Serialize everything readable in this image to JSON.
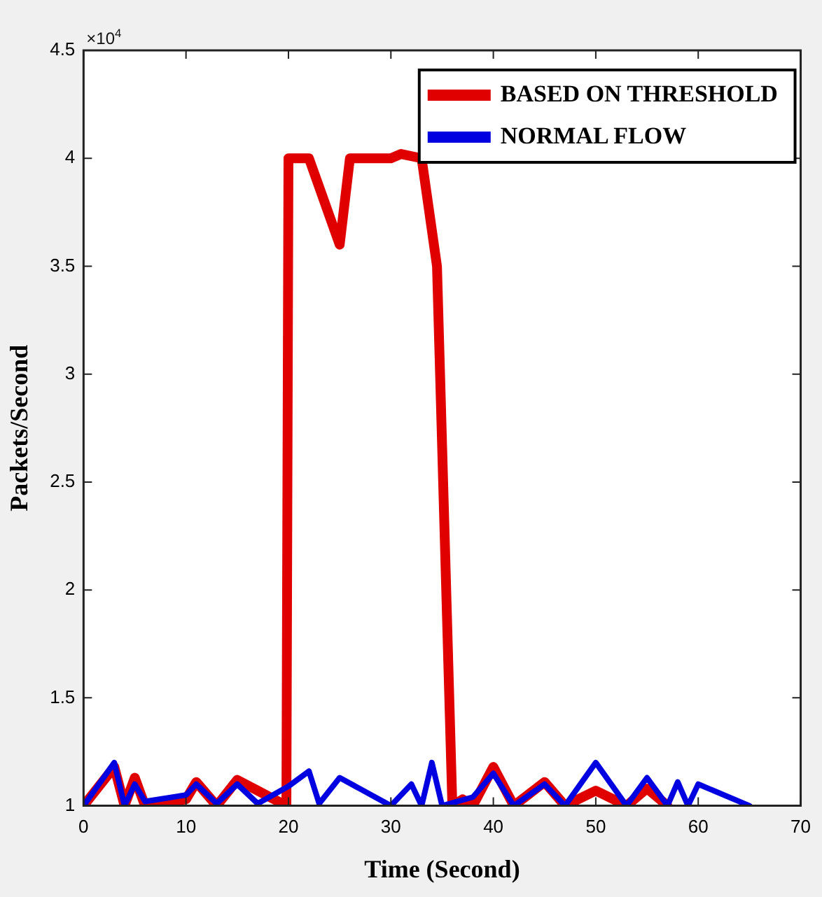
{
  "chart_data": {
    "type": "line",
    "xlabel": "Time (Second)",
    "ylabel": "Packets/Second",
    "annotations": [
      "×10$^{4}$"
    ],
    "xlim": [
      0,
      70
    ],
    "xticks": [
      0,
      10,
      20,
      30,
      40,
      50,
      60,
      70
    ],
    "ylim": [
      1,
      4.5
    ],
    "yticks": [
      1,
      1.5,
      2,
      2.5,
      3,
      3.5,
      4,
      4.5
    ],
    "grid": false,
    "legend": "top right",
    "marker": "none",
    "line_style": "solid",
    "series": [
      {
        "name": "BASED ON THRESHOLD",
        "color": "#e00000",
        "x": [
          0,
          3,
          4,
          5,
          6,
          10,
          11,
          13,
          15,
          17,
          19.8,
          20,
          22,
          25,
          26,
          30,
          31,
          33,
          34.5,
          36,
          37,
          38,
          40,
          42,
          45,
          47,
          50,
          53,
          55,
          57
        ],
        "values": [
          1,
          1.18,
          1,
          1.13,
          1,
          1.03,
          1.11,
          1,
          1.12,
          1.07,
          1,
          4,
          4,
          3.6,
          4,
          4,
          4.02,
          4,
          3.5,
          1,
          1.03,
          1,
          1.18,
          1,
          1.11,
          1,
          1.07,
          1,
          1.08,
          1
        ]
      },
      {
        "name": "NORMAL FLOW",
        "color": "#0000e0",
        "x": [
          0,
          3,
          4,
          5,
          6,
          10,
          11,
          13,
          15,
          17,
          20,
          22,
          23,
          25,
          30,
          32,
          33,
          34,
          35,
          38,
          40,
          42,
          45,
          47,
          50,
          53,
          55,
          57,
          58,
          59,
          60,
          65
        ],
        "values": [
          1,
          1.2,
          1,
          1.1,
          1.02,
          1.05,
          1.1,
          1.01,
          1.1,
          1.01,
          1.09,
          1.16,
          1.01,
          1.13,
          1,
          1.1,
          1,
          1.2,
          1,
          1.04,
          1.15,
          1,
          1.1,
          1,
          1.2,
          1,
          1.13,
          1,
          1.11,
          1,
          1.1,
          1
        ]
      }
    ]
  }
}
